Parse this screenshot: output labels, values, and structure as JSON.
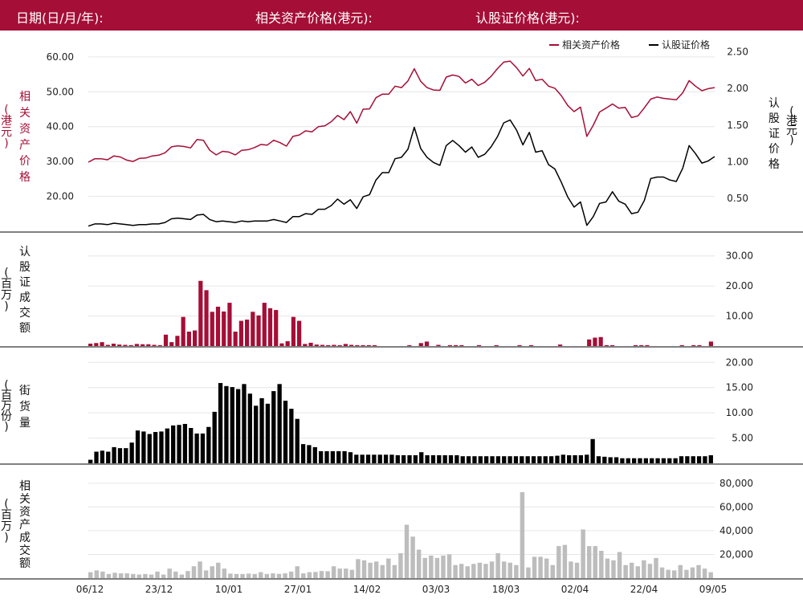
{
  "header": {
    "date_label": "日期(日/月/年):",
    "asset_price_label": "相关资产价格(港元):",
    "warrant_price_label": "认股证价格(港元):"
  },
  "colors": {
    "header_bg": "#a50e36",
    "asset": "#a50e36",
    "warrant": "#000000",
    "asset_turnover": "#bdbdbd",
    "grid": "#e6e6e6"
  },
  "chart_data": [
    {
      "id": "price",
      "type": "line",
      "legend": [
        "相关资产价格",
        "认股证价格"
      ],
      "legend_position": "top-right",
      "ylabel_left": [
        "相",
        "关",
        "资",
        "产",
        "价",
        "格"
      ],
      "ylabel_left_unit": [
        "(",
        "港",
        "元",
        ")"
      ],
      "ylabel_right": [
        "认",
        "股",
        "证",
        "价",
        "格"
      ],
      "ylabel_right_unit": [
        "(",
        "港",
        "元",
        ")"
      ],
      "y_left_ticks": [
        "20.00",
        "30.00",
        "40.00",
        "50.00",
        "60.00"
      ],
      "y_right_ticks": [
        "0.50",
        "1.00",
        "1.50",
        "2.00",
        "2.50"
      ],
      "ylim_left": [
        10,
        62.5
      ],
      "ylim_right": [
        0.05,
        2.55
      ],
      "series": [
        {
          "name": "相关资产价格",
          "axis": "left",
          "values": [
            29.8,
            30.8,
            30.8,
            30.5,
            31.6,
            31.3,
            30.4,
            30.0,
            30.9,
            31.0,
            31.6,
            31.8,
            32.5,
            34.2,
            34.5,
            34.3,
            33.9,
            36.3,
            36.1,
            33.2,
            31.9,
            32.9,
            32.7,
            31.9,
            33.2,
            33.4,
            34.0,
            34.9,
            34.7,
            36.1,
            35.4,
            34.4,
            37.2,
            37.6,
            38.8,
            38.5,
            40.0,
            40.2,
            41.4,
            43.2,
            42.0,
            44.3,
            41.0,
            45.0,
            45.1,
            48.3,
            49.3,
            49.3,
            51.6,
            51.2,
            53.1,
            56.6,
            53.0,
            51.2,
            50.5,
            50.4,
            54.2,
            54.8,
            54.4,
            52.5,
            53.6,
            51.8,
            52.7,
            54.4,
            56.6,
            58.5,
            58.8,
            56.9,
            54.5,
            56.7,
            53.2,
            53.6,
            51.6,
            51.0,
            48.9,
            46.1,
            44.3,
            45.6,
            37.2,
            40.4,
            44.2,
            45.3,
            46.5,
            45.3,
            45.5,
            42.6,
            43.1,
            45.4,
            47.9,
            48.5,
            48.1,
            47.9,
            47.7,
            49.7,
            53.2,
            51.6,
            50.3,
            50.9,
            51.2
          ]
        },
        {
          "name": "认股证价格",
          "axis": "right",
          "values": [
            0.12,
            0.15,
            0.15,
            0.14,
            0.16,
            0.15,
            0.14,
            0.13,
            0.14,
            0.14,
            0.15,
            0.15,
            0.17,
            0.22,
            0.23,
            0.22,
            0.21,
            0.27,
            0.28,
            0.21,
            0.18,
            0.19,
            0.18,
            0.17,
            0.19,
            0.18,
            0.19,
            0.19,
            0.19,
            0.21,
            0.19,
            0.17,
            0.25,
            0.25,
            0.29,
            0.28,
            0.35,
            0.35,
            0.4,
            0.49,
            0.42,
            0.48,
            0.36,
            0.52,
            0.55,
            0.75,
            0.85,
            0.85,
            1.04,
            1.06,
            1.17,
            1.47,
            1.18,
            1.06,
            0.99,
            0.95,
            1.22,
            1.29,
            1.22,
            1.13,
            1.2,
            1.06,
            1.1,
            1.2,
            1.34,
            1.53,
            1.57,
            1.43,
            1.23,
            1.4,
            1.13,
            1.15,
            0.96,
            0.9,
            0.72,
            0.52,
            0.38,
            0.45,
            0.13,
            0.25,
            0.43,
            0.45,
            0.59,
            0.46,
            0.42,
            0.29,
            0.31,
            0.47,
            0.77,
            0.79,
            0.79,
            0.75,
            0.73,
            0.91,
            1.22,
            1.11,
            0.98,
            1.01,
            1.07
          ]
        }
      ]
    },
    {
      "id": "warrant_turnover",
      "type": "bar",
      "ylabel": [
        "认",
        "股",
        "证",
        "成",
        "交",
        "额"
      ],
      "ylabel_unit": [
        "(",
        "百",
        "万",
        ")"
      ],
      "y_ticks": [
        "10.00",
        "20.00",
        "30.00"
      ],
      "ylim": [
        0,
        35
      ],
      "color": "#a50e36",
      "values": [
        0.8,
        1.0,
        1.3,
        0.4,
        0.8,
        0.5,
        0.4,
        0.3,
        0.7,
        0.6,
        0.6,
        0.4,
        0.3,
        3.8,
        1.3,
        3.4,
        9.7,
        4.8,
        5.2,
        21.7,
        18.6,
        11.4,
        13.1,
        11.5,
        14.4,
        4.8,
        8.4,
        8.8,
        11.4,
        10.2,
        14.4,
        12.6,
        12.0,
        0.9,
        1.6,
        9.7,
        8.4,
        0.7,
        1.1,
        0.5,
        0.4,
        0.3,
        0.4,
        0.3,
        0.7,
        0.4,
        0.3,
        0.3,
        0.3,
        0.3,
        0,
        0,
        0,
        0,
        0,
        0.3,
        0,
        1.0,
        1.5,
        0,
        0.4,
        0,
        0.3,
        0.3,
        0.3,
        0,
        0,
        0.3,
        0,
        0,
        0.3,
        0,
        0,
        0,
        0.3,
        0,
        0.3,
        0,
        0,
        0,
        0,
        0.5,
        0,
        0,
        0,
        0,
        2.2,
        2.8,
        3.0,
        0.3,
        0.3,
        0,
        0,
        0,
        0.3,
        0.3,
        0.3,
        0,
        0,
        0,
        0,
        0,
        0.3,
        0,
        0.3,
        0.3,
        0,
        1.5
      ]
    },
    {
      "id": "outstanding",
      "type": "bar",
      "ylabel": [
        "街",
        "货",
        "量"
      ],
      "ylabel_unit": [
        "(",
        "百",
        "万",
        "份",
        ")"
      ],
      "y_ticks": [
        "5.00",
        "10.00",
        "15.00",
        "20.00"
      ],
      "ylim": [
        0,
        21
      ],
      "color": "#000000",
      "values": [
        0.7,
        2.3,
        2.5,
        2.3,
        3.2,
        3.0,
        3.0,
        4.1,
        6.5,
        6.3,
        5.8,
        6.2,
        6.3,
        6.9,
        7.5,
        7.6,
        7.8,
        7.0,
        5.9,
        5.9,
        7.2,
        10.2,
        15.9,
        15.3,
        15.1,
        14.7,
        15.7,
        13.8,
        11.4,
        12.9,
        11.8,
        14.3,
        15.7,
        12.4,
        10.8,
        8.8,
        3.8,
        3.6,
        3.2,
        2.4,
        2.4,
        2.4,
        2.4,
        2.4,
        2.2,
        1.7,
        1.7,
        1.7,
        1.7,
        1.7,
        1.7,
        1.7,
        1.6,
        1.6,
        1.6,
        1.6,
        2.2,
        1.6,
        1.6,
        1.6,
        1.6,
        1.6,
        1.6,
        1.4,
        1.4,
        1.4,
        1.4,
        1.4,
        1.4,
        1.4,
        1.4,
        1.4,
        1.4,
        1.4,
        1.4,
        1.4,
        1.4,
        1.4,
        1.4,
        1.5,
        1.7,
        1.6,
        1.6,
        1.6,
        1.7,
        4.8,
        1.4,
        1.3,
        1.2,
        1.2,
        1.0,
        1.0,
        1.0,
        1.0,
        1.0,
        1.0,
        1.0,
        1.0,
        1.0,
        1.0,
        1.4,
        1.4,
        1.4,
        1.4,
        1.4,
        1.6
      ]
    },
    {
      "id": "asset_turnover",
      "type": "bar",
      "ylabel": [
        "相",
        "关",
        "资",
        "产",
        "成",
        "交",
        "额"
      ],
      "ylabel_unit": [
        "(",
        "百",
        "万",
        ")"
      ],
      "y_ticks": [
        "20,000",
        "40,000",
        "60,000",
        "80,000"
      ],
      "ylim": [
        0,
        88000
      ],
      "color": "#bdbdbd",
      "values": [
        5000,
        6500,
        5500,
        3500,
        4500,
        4000,
        4000,
        3500,
        3000,
        3500,
        3000,
        5500,
        3000,
        8000,
        5500,
        3000,
        6000,
        10000,
        14000,
        6500,
        10000,
        13000,
        8000,
        3800,
        3500,
        3500,
        3800,
        3500,
        5000,
        3500,
        4000,
        3600,
        4000,
        5500,
        10000,
        4000,
        5000,
        5200,
        6000,
        5800,
        10000,
        8000,
        8000,
        7000,
        16000,
        15000,
        13000,
        14000,
        11000,
        16500,
        11000,
        21000,
        45000,
        35000,
        24000,
        17000,
        19000,
        17000,
        19000,
        20000,
        11000,
        12000,
        10000,
        12000,
        13000,
        12000,
        14000,
        21000,
        14000,
        13000,
        11000,
        72500,
        9000,
        18000,
        18000,
        16500,
        11000,
        27000,
        28000,
        14000,
        13000,
        41000,
        27000,
        27000,
        23000,
        16500,
        15000,
        22000,
        11000,
        13000,
        10000,
        15000,
        12000,
        17000,
        9000,
        7000,
        6500,
        11000,
        7000,
        9000,
        11000,
        8000,
        5000
      ]
    }
  ],
  "x_tick_labels": [
    "06/12",
    "23/12",
    "10/01",
    "27/01",
    "14/02",
    "03/03",
    "18/03",
    "02/04",
    "22/04",
    "09/05"
  ]
}
